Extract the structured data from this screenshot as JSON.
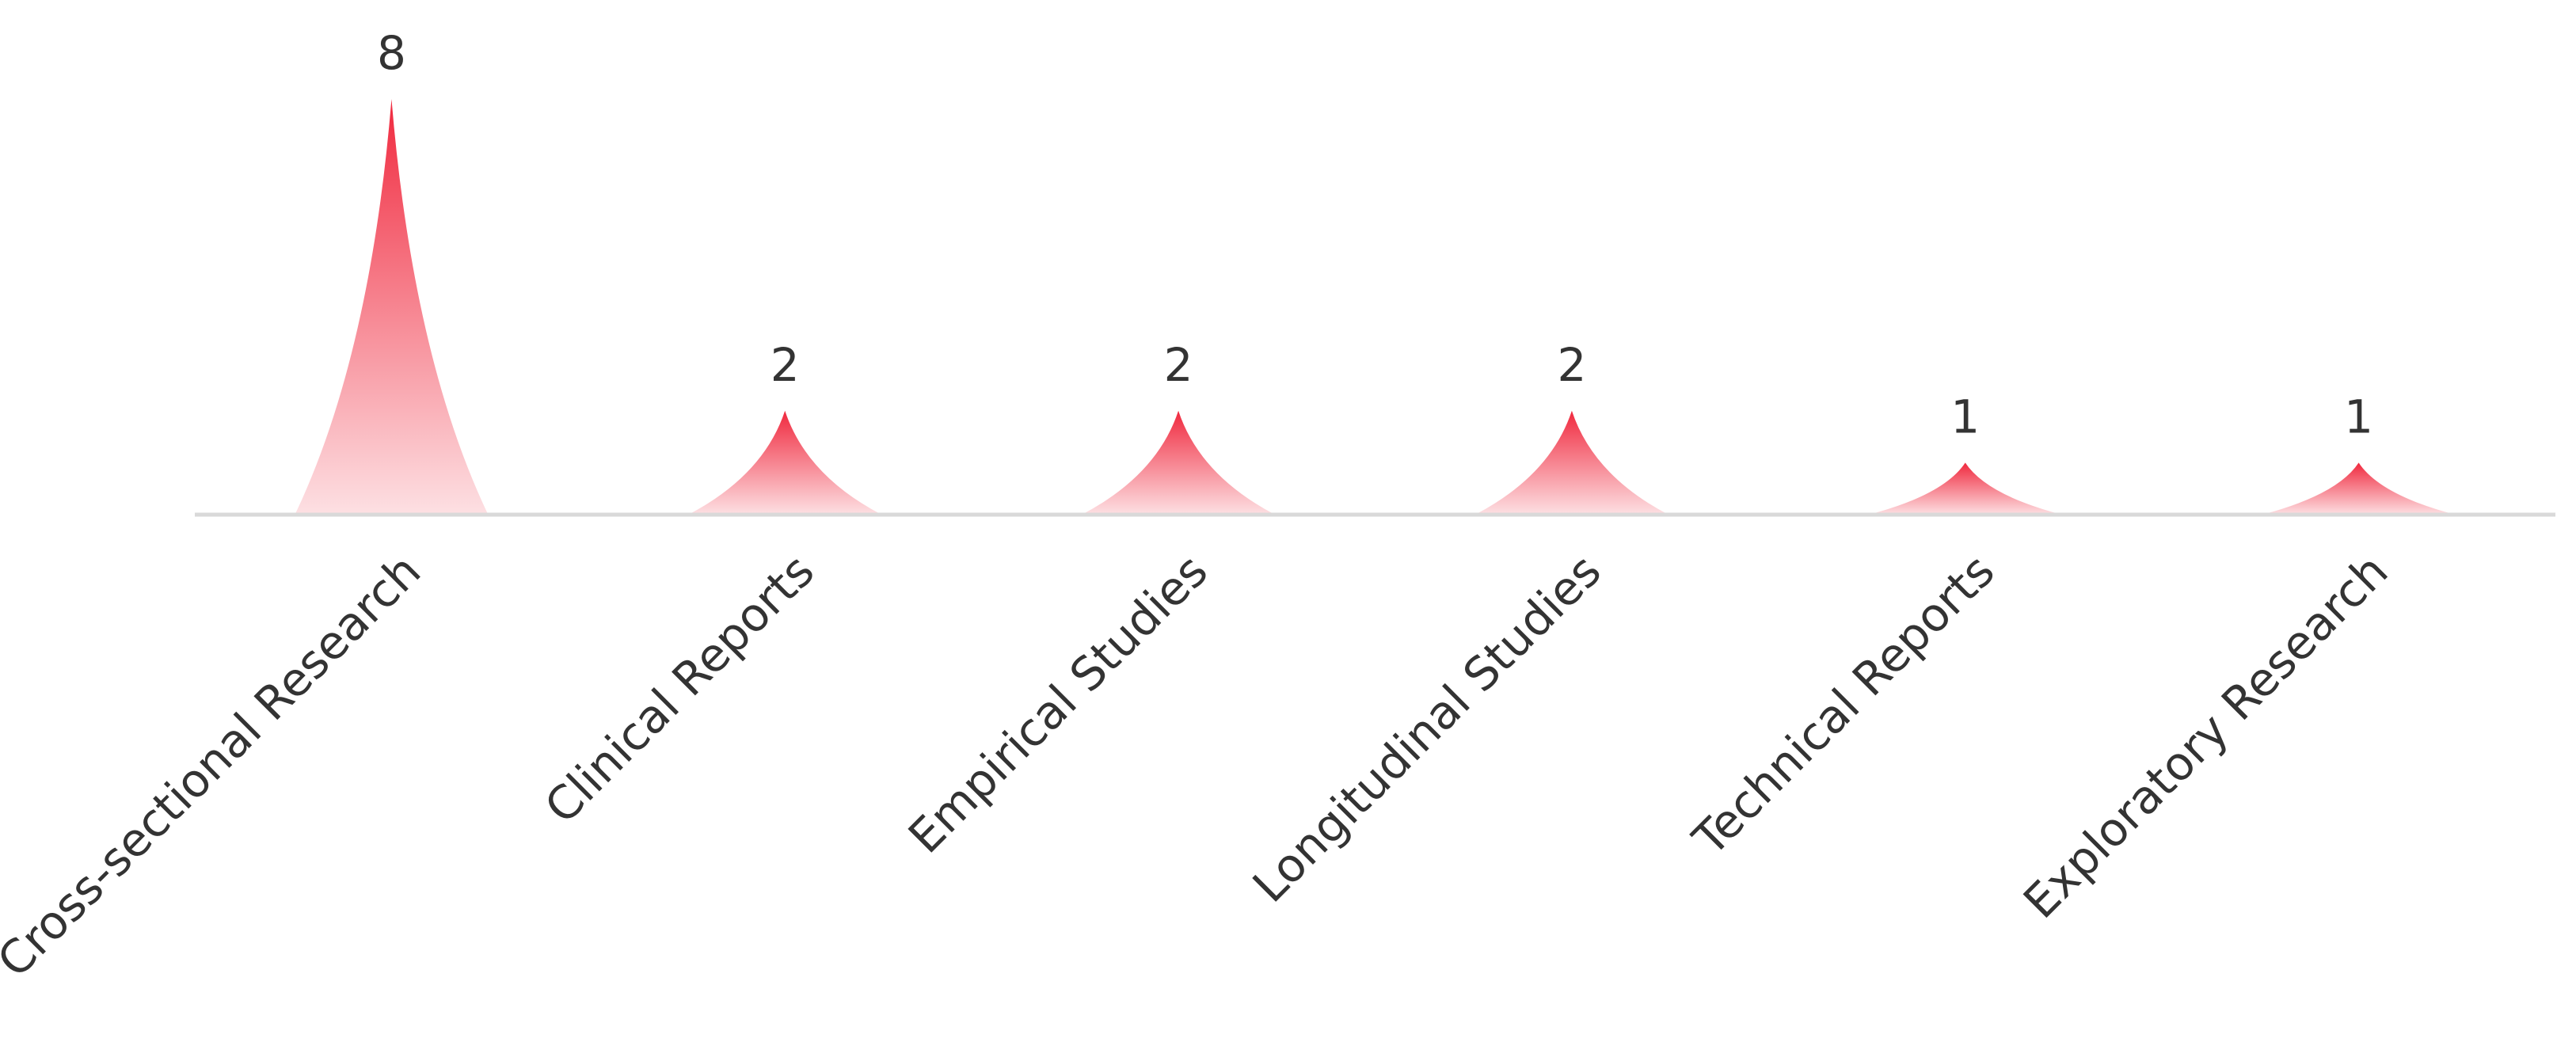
{
  "chart_data": {
    "type": "bar",
    "categories": [
      "Cross-sectional Research",
      "Clinical Reports",
      "Empirical Studies",
      "Longitudinal Studies",
      "Technical Reports",
      "Exploratory Research"
    ],
    "values": [
      8,
      2,
      2,
      2,
      1,
      1
    ],
    "ylim": [
      0,
      8
    ],
    "grid": false,
    "legend": "none",
    "bar_shape": "pictorial spike (concave triangle)",
    "colors": {
      "fill_top": "#f0293e",
      "fill_bottom": "#fde0e3",
      "axis": "#d9d9d9",
      "text": "#333333"
    }
  }
}
